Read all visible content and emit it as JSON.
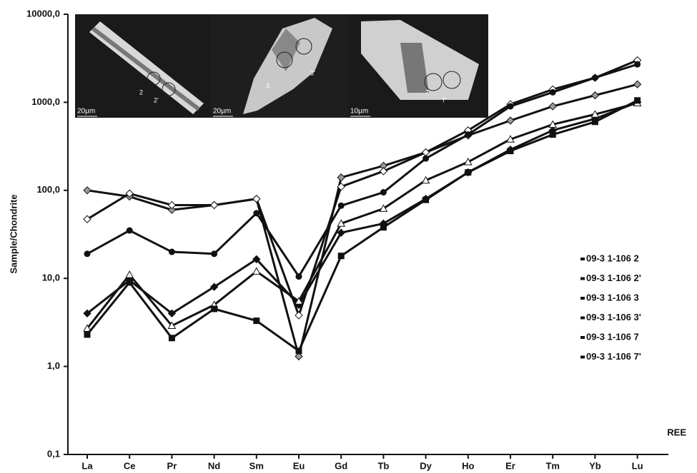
{
  "chart_data": {
    "type": "line",
    "y_label": "Sample/Chondrite",
    "x_label": "REE",
    "categories": [
      "La",
      "Ce",
      "Pr",
      "Nd",
      "Sm",
      "Eu",
      "Gd",
      "Tb",
      "Dy",
      "Ho",
      "Er",
      "Tm",
      "Yb",
      "Lu"
    ],
    "log_y": true,
    "ylim": [
      0.1,
      10000
    ],
    "yticks": [
      {
        "value": 0.1,
        "label": "0,1"
      },
      {
        "value": 1,
        "label": "1,0"
      },
      {
        "value": 10,
        "label": "10,0"
      },
      {
        "value": 100,
        "label": "100,0"
      },
      {
        "value": 1000,
        "label": "1000,0"
      },
      {
        "value": 10000,
        "label": "10000,0"
      }
    ],
    "series": [
      {
        "name": "09-3 1-106 2",
        "color": "#111111",
        "marker": "diamond",
        "marker_fill": "#999999",
        "values": [
          100,
          85,
          60,
          68,
          80,
          1.3,
          140,
          190,
          270,
          420,
          620,
          900,
          1200,
          1600
        ]
      },
      {
        "name": "09-3 1-106 2'",
        "color": "#111111",
        "marker": "diamond",
        "marker_fill": "#ffffff",
        "values": [
          47,
          92,
          68,
          68,
          80,
          3.8,
          110,
          165,
          270,
          480,
          950,
          1400,
          1900,
          3000
        ]
      },
      {
        "name": "09-3 1-106 3",
        "color": "#111111",
        "marker": "circle",
        "marker_fill": "#111111",
        "values": [
          19,
          35,
          20,
          19,
          55,
          10.5,
          67,
          95,
          230,
          430,
          900,
          1300,
          1900,
          2700
        ]
      },
      {
        "name": "09-3 1-106 3'",
        "color": "#111111",
        "marker": "diamond",
        "marker_fill": "#111111",
        "values": [
          4,
          9.5,
          4,
          8,
          16.5,
          5,
          33,
          42,
          80,
          160,
          290,
          480,
          650,
          1000
        ]
      },
      {
        "name": "09-3 1-106 7",
        "color": "#111111",
        "marker": "triangle",
        "marker_fill": "#ffffff",
        "values": [
          2.7,
          11,
          2.9,
          5,
          12,
          5.5,
          42,
          62,
          130,
          210,
          380,
          560,
          730,
          980
        ]
      },
      {
        "name": "09-3 1-106 7'",
        "color": "#111111",
        "marker": "square",
        "marker_fill": "#111111",
        "values": [
          2.3,
          9,
          2.1,
          4.5,
          3.3,
          1.5,
          18,
          38,
          78,
          160,
          280,
          430,
          600,
          1050
        ]
      }
    ],
    "insets": [
      {
        "scale": "20µm",
        "labels": [
          "2",
          "2'"
        ]
      },
      {
        "scale": "20µm",
        "labels": [
          "3",
          "3'"
        ]
      },
      {
        "scale": "10µm",
        "labels": [
          "7",
          "7'"
        ]
      }
    ]
  }
}
